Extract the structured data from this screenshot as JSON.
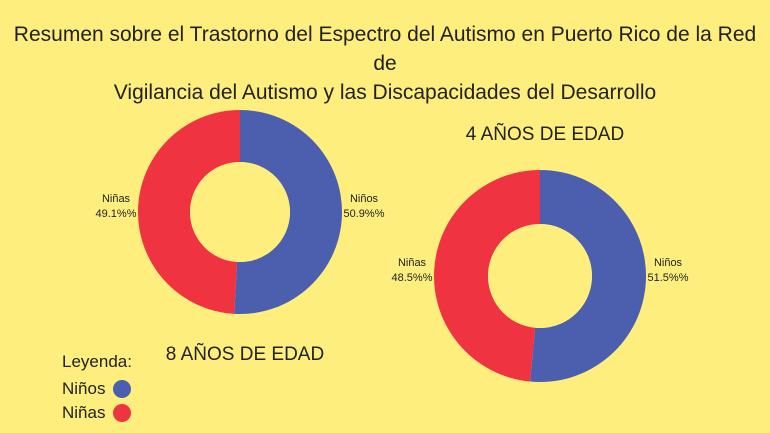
{
  "title": {
    "line1": "Resumen sobre el Trastorno del Espectro del Autismo en Puerto Rico de la Red de",
    "line2": "Vigilancia del Autismo y las Discapacidades del Desarrollo"
  },
  "colors": {
    "background": "#fdee7e",
    "ninos": "#4c5fae",
    "ninas": "#ef3340"
  },
  "legend": {
    "title": "Leyenda:",
    "items": [
      {
        "label": "Niños",
        "color": "#4c5fae"
      },
      {
        "label": "Niñas",
        "color": "#ef3340"
      }
    ]
  },
  "chart_data": [
    {
      "type": "pie",
      "title": "8 AÑOS DE EDAD",
      "slices": [
        {
          "label": "Niños",
          "value": 50.9,
          "value_text": "50.9%%",
          "color": "#4c5fae"
        },
        {
          "label": "Niñas",
          "value": 49.1,
          "value_text": "49.1%%",
          "color": "#ef3340"
        }
      ]
    },
    {
      "type": "pie",
      "title": "4 AÑOS DE EDAD",
      "slices": [
        {
          "label": "Niños",
          "value": 51.5,
          "value_text": "51.5%%",
          "color": "#4c5fae"
        },
        {
          "label": "Niñas",
          "value": 48.5,
          "value_text": "48.5%%",
          "color": "#ef3340"
        }
      ]
    }
  ]
}
